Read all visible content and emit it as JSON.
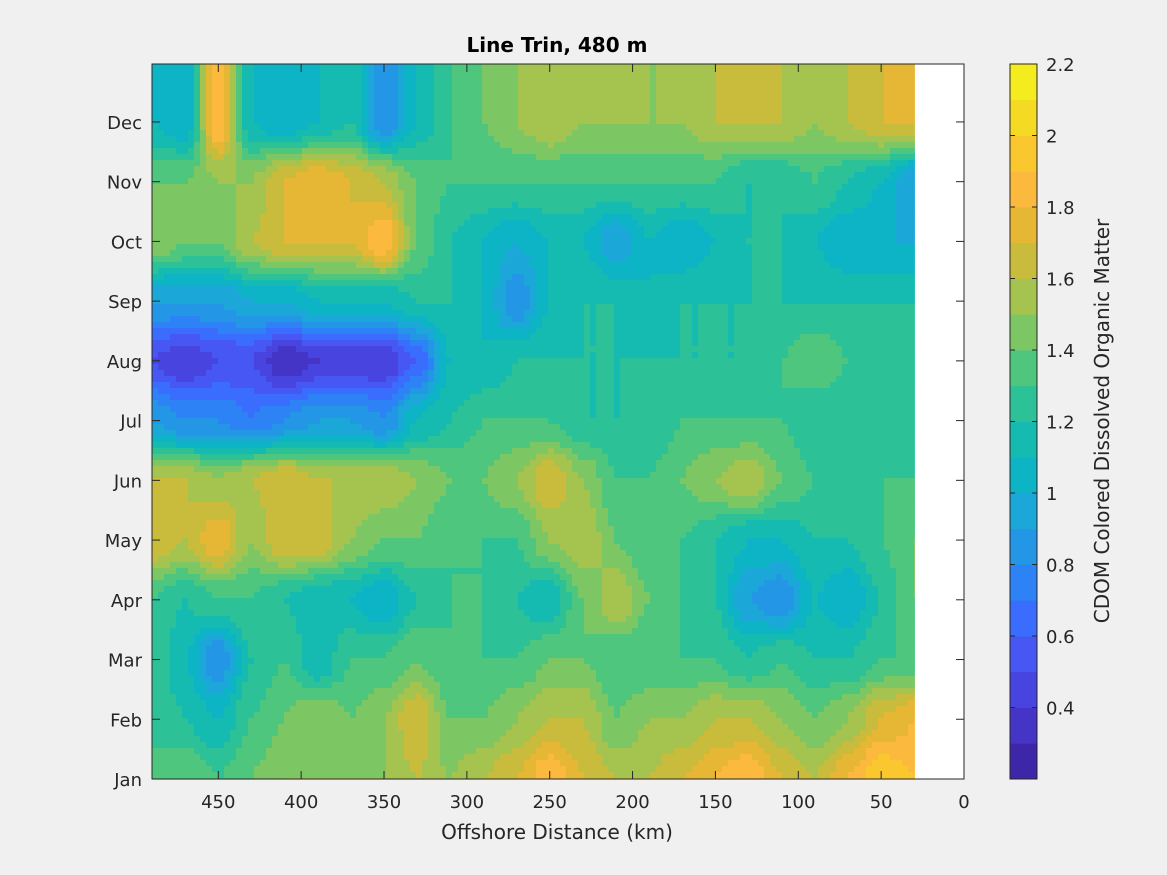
{
  "chart_data": {
    "type": "heatmap",
    "title": "Line Trin, 480 m",
    "xlabel": "Offshore Distance (km)",
    "ylabel": "",
    "x_reversed": true,
    "xlim": [
      0,
      490
    ],
    "data_x_range": [
      30,
      490
    ],
    "x_ticks": [
      450,
      400,
      350,
      300,
      250,
      200,
      150,
      100,
      50,
      0
    ],
    "y_ticks": [
      "Jan",
      "Feb",
      "Mar",
      "Apr",
      "May",
      "Jun",
      "Jul",
      "Aug",
      "Sep",
      "Oct",
      "Nov",
      "Dec"
    ],
    "colorbar": {
      "label": "CDOM Colored Dissolved Organic Matter",
      "range": [
        0.2,
        2.2
      ],
      "ticks": [
        "0.4",
        "0.6",
        "0.8",
        "1",
        "1.2",
        "1.4",
        "1.6",
        "1.8",
        "2",
        "2.2"
      ],
      "levels": 20,
      "colors": [
        "#3e26a8",
        "#4435c7",
        "#4744e0",
        "#4657f3",
        "#3a6dfd",
        "#2d83f6",
        "#2496e6",
        "#1ba7d8",
        "#0db4c5",
        "#15bbb0",
        "#2dc198",
        "#4ec67d",
        "#7cc663",
        "#a5c34f",
        "#c9bc3c",
        "#e6b735",
        "#fbb93d",
        "#fac72f",
        "#f5da24",
        "#f5ec1d"
      ]
    },
    "x": [
      490,
      470,
      450,
      430,
      410,
      390,
      370,
      350,
      330,
      310,
      290,
      270,
      250,
      230,
      210,
      190,
      170,
      150,
      130,
      110,
      90,
      70,
      50,
      30
    ],
    "y": [
      "Jan",
      "Feb",
      "Mar",
      "Apr",
      "May",
      "Jun",
      "Jul",
      "Aug",
      "Sep",
      "Oct",
      "Nov",
      "Dec"
    ],
    "z": [
      [
        1.3,
        1.4,
        1.3,
        1.4,
        1.5,
        1.5,
        1.5,
        1.5,
        1.6,
        1.5,
        1.6,
        1.7,
        1.9,
        1.7,
        1.6,
        1.6,
        1.7,
        1.8,
        1.9,
        1.7,
        1.6,
        1.8,
        2.0,
        1.9
      ],
      [
        1.3,
        1.2,
        1.1,
        1.3,
        1.4,
        1.5,
        1.4,
        1.5,
        1.7,
        1.4,
        1.4,
        1.5,
        1.6,
        1.6,
        1.4,
        1.5,
        1.5,
        1.6,
        1.6,
        1.5,
        1.4,
        1.5,
        1.7,
        1.8
      ],
      [
        1.3,
        1.1,
        0.8,
        1.2,
        1.3,
        1.1,
        1.3,
        1.3,
        1.4,
        1.3,
        1.3,
        1.3,
        1.4,
        1.4,
        1.3,
        1.3,
        1.3,
        1.3,
        1.2,
        1.3,
        1.2,
        1.2,
        1.3,
        1.3
      ],
      [
        1.3,
        1.2,
        1.3,
        1.3,
        1.2,
        1.1,
        1.1,
        1.0,
        1.2,
        1.3,
        1.3,
        1.2,
        1.1,
        1.4,
        1.6,
        1.4,
        1.3,
        1.2,
        0.9,
        0.8,
        1.1,
        1.0,
        1.2,
        1.4
      ],
      [
        1.7,
        1.6,
        1.8,
        1.5,
        1.7,
        1.7,
        1.5,
        1.4,
        1.4,
        1.3,
        1.3,
        1.3,
        1.5,
        1.6,
        1.4,
        1.3,
        1.3,
        1.2,
        1.1,
        1.1,
        1.2,
        1.2,
        1.3,
        1.4
      ],
      [
        1.6,
        1.6,
        1.5,
        1.6,
        1.7,
        1.6,
        1.6,
        1.6,
        1.5,
        1.4,
        1.4,
        1.5,
        1.7,
        1.5,
        1.3,
        1.3,
        1.4,
        1.5,
        1.6,
        1.4,
        1.3,
        1.3,
        1.3,
        1.3
      ],
      [
        0.9,
        0.8,
        0.8,
        0.7,
        0.8,
        0.9,
        0.9,
        0.8,
        1.1,
        1.2,
        1.3,
        1.3,
        1.3,
        1.2,
        1.2,
        1.2,
        1.3,
        1.3,
        1.3,
        1.3,
        1.2,
        1.2,
        1.2,
        1.2
      ],
      [
        0.5,
        0.4,
        0.5,
        0.5,
        0.3,
        0.4,
        0.4,
        0.4,
        0.6,
        1.1,
        1.1,
        1.2,
        1.2,
        1.2,
        1.2,
        1.2,
        1.2,
        1.2,
        1.2,
        1.3,
        1.4,
        1.3,
        1.2,
        1.2
      ],
      [
        0.9,
        0.9,
        0.9,
        1.0,
        1.0,
        1.1,
        1.1,
        1.1,
        1.2,
        1.2,
        1.1,
        0.8,
        1.1,
        1.2,
        1.2,
        1.1,
        1.2,
        1.2,
        1.2,
        1.2,
        1.2,
        1.2,
        1.2,
        1.2
      ],
      [
        1.5,
        1.4,
        1.4,
        1.6,
        1.7,
        1.7,
        1.7,
        1.9,
        1.4,
        1.2,
        1.1,
        1.0,
        1.1,
        1.1,
        0.9,
        1.1,
        1.0,
        1.1,
        1.2,
        1.2,
        1.1,
        1.0,
        1.0,
        1.0
      ],
      [
        1.4,
        1.4,
        1.5,
        1.5,
        1.7,
        1.8,
        1.7,
        1.6,
        1.4,
        1.3,
        1.3,
        1.3,
        1.3,
        1.3,
        1.3,
        1.3,
        1.3,
        1.3,
        1.2,
        1.2,
        1.3,
        1.2,
        1.1,
        0.9
      ],
      [
        1.1,
        1.0,
        1.9,
        1.1,
        1.0,
        1.1,
        1.2,
        0.8,
        1.1,
        1.3,
        1.4,
        1.5,
        1.6,
        1.5,
        1.5,
        1.5,
        1.5,
        1.6,
        1.6,
        1.6,
        1.5,
        1.6,
        1.7,
        1.7
      ]
    ]
  }
}
